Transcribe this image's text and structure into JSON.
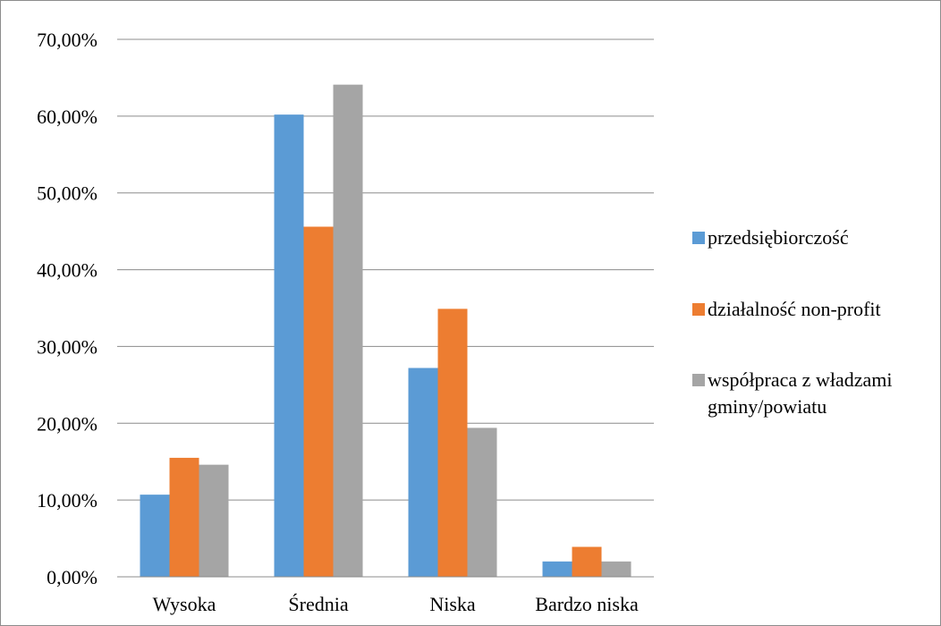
{
  "chart_data": {
    "type": "bar",
    "categories": [
      "Wysoka",
      "Średnia",
      "Niska",
      "Bardzo niska"
    ],
    "series": [
      {
        "name": "przedsiębiorczość",
        "values": [
          10.7,
          60.2,
          27.2,
          2.0
        ],
        "color": "#5b9bd5"
      },
      {
        "name": "działalność non-profit",
        "values": [
          15.5,
          45.6,
          34.9,
          3.9
        ],
        "color": "#ed7d31"
      },
      {
        "name": "współpraca z władzami gminy/powiatu",
        "values": [
          14.6,
          64.1,
          19.4,
          2.0
        ],
        "color": "#a5a5a5"
      }
    ],
    "ylim": [
      0,
      70
    ],
    "yticks": [
      0,
      10,
      20,
      30,
      40,
      50,
      60,
      70
    ],
    "ytick_labels": [
      "0,00%",
      "10,00%",
      "20,00%",
      "30,00%",
      "40,00%",
      "50,00%",
      "60,00%",
      "70,00%"
    ],
    "y_unit": "percent",
    "grid": true,
    "gridline_color": "#8c8c8c",
    "legend_position": "right",
    "legend_labels": [
      [
        "przedsiębiorczość"
      ],
      [
        "działalność non-profit"
      ],
      [
        "współpraca z władzami",
        "gminy/powiatu"
      ]
    ]
  }
}
